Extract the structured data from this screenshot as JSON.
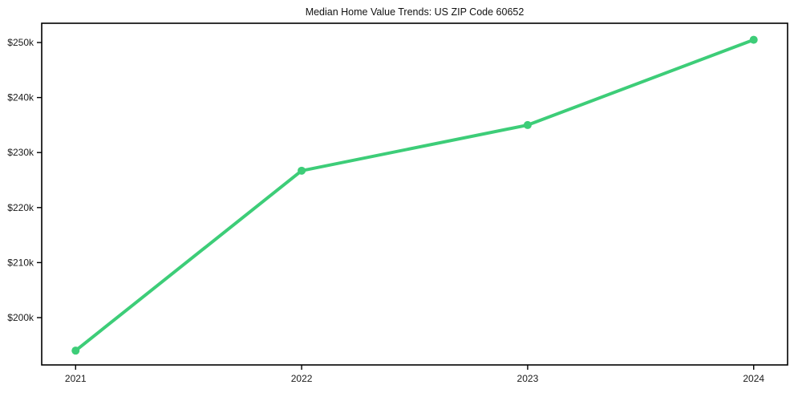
{
  "chart_data": {
    "type": "line",
    "title": "Median Home Value Trends: US ZIP Code 60652",
    "x": [
      2021,
      2022,
      2023,
      2024
    ],
    "xtick_labels": [
      "2021",
      "2022",
      "2023",
      "2024"
    ],
    "series": [
      {
        "name": "Median Home Value",
        "values": [
          194000,
          226700,
          235000,
          250500
        ],
        "color": "#3dcd78",
        "marker": "circle"
      }
    ],
    "xlabel": "",
    "ylabel": "",
    "xlim": [
      2020.85,
      2024.15
    ],
    "ylim": [
      191400,
      253500
    ],
    "yticks": [
      200000,
      210000,
      220000,
      230000,
      240000,
      250000
    ],
    "ytick_labels": [
      "$200k",
      "$210k",
      "$220k",
      "$230k",
      "$240k",
      "$250k"
    ],
    "grid": false,
    "legend": "none",
    "axis_color": "#000000",
    "text_color": "#1a1a1a",
    "background_color": "#ffffff"
  }
}
